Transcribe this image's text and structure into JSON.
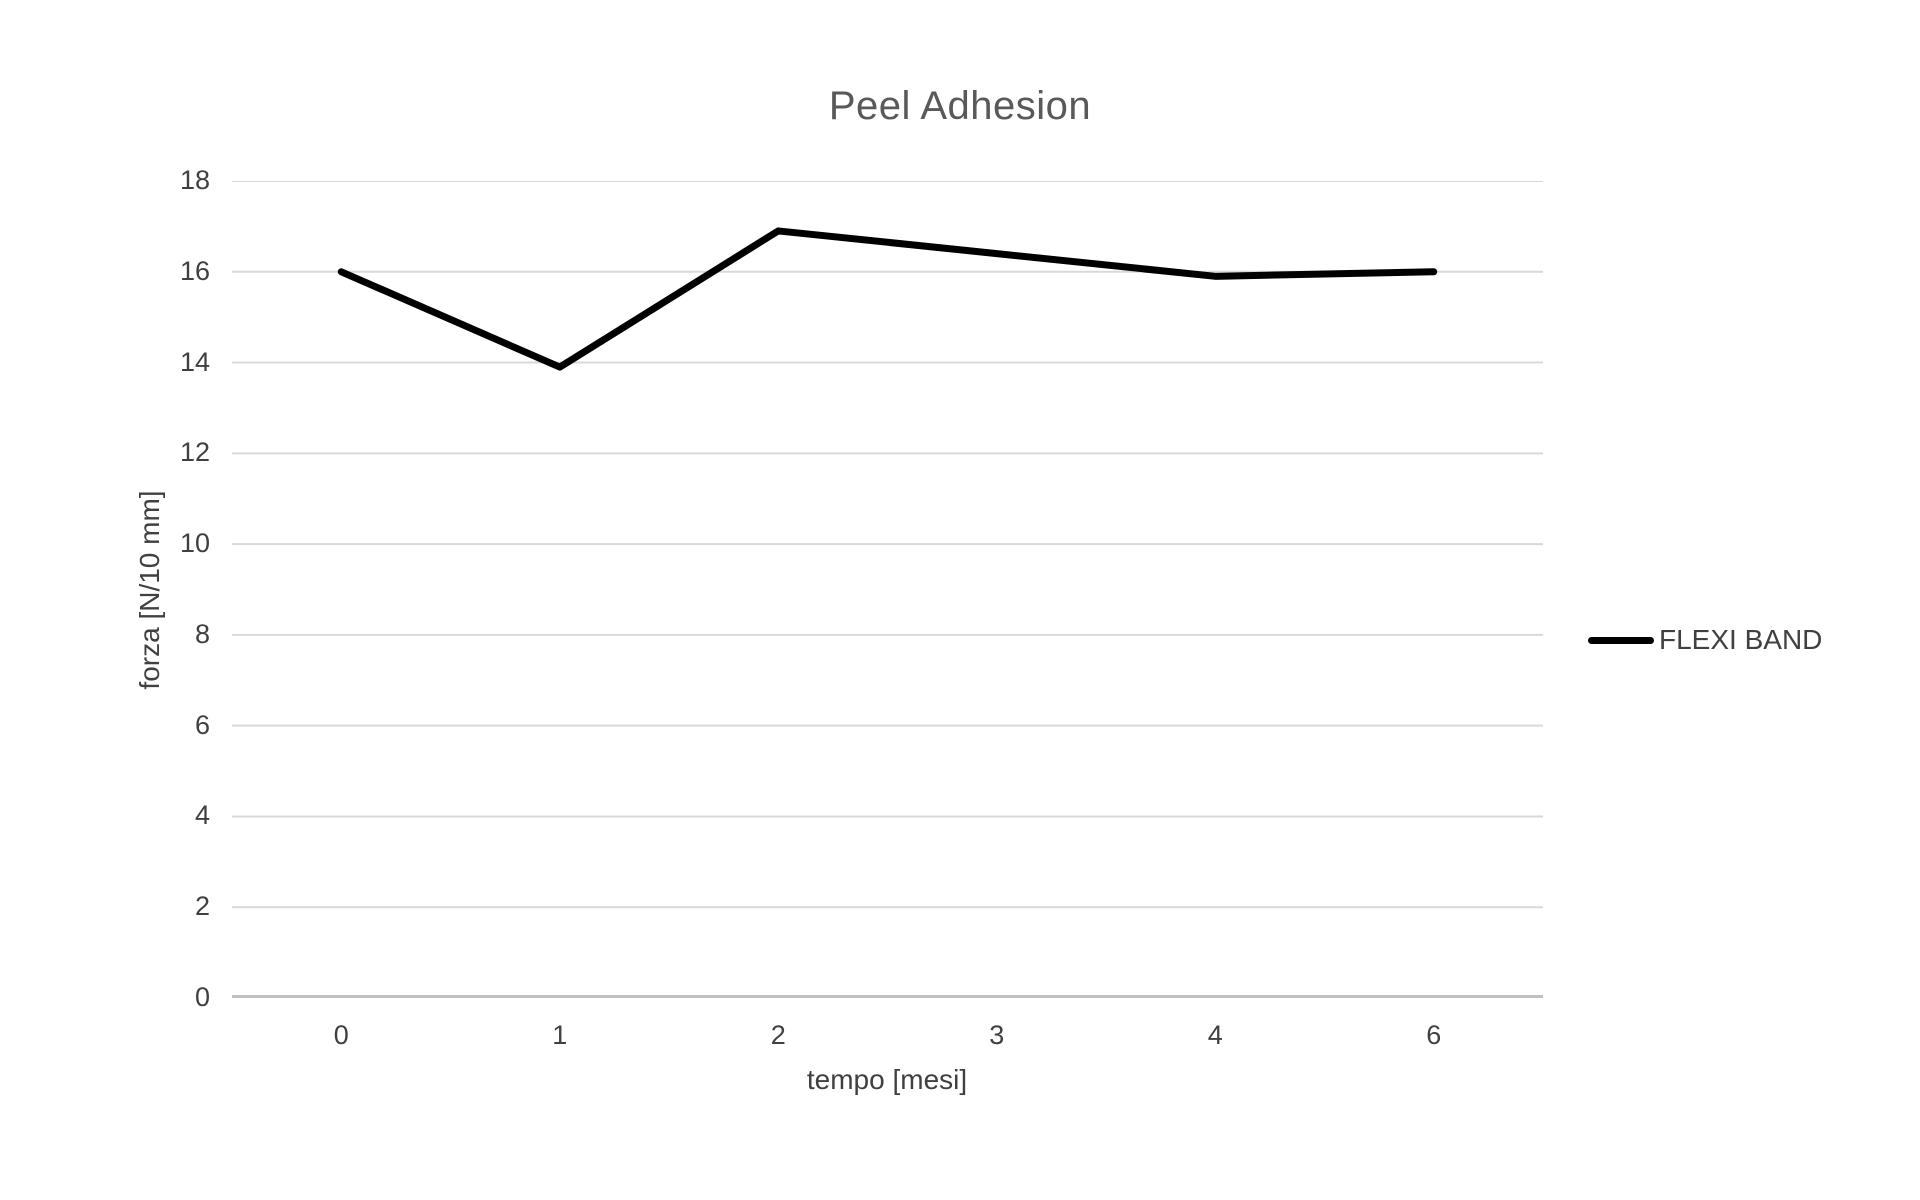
{
  "chart_data": {
    "type": "line",
    "title": "Peel Adhesion",
    "xlabel": "tempo [mesi]",
    "ylabel": "forza [N/10 mm]",
    "categories": [
      "0",
      "1",
      "2",
      "3",
      "4",
      "6"
    ],
    "yticks": [
      0,
      2,
      4,
      6,
      8,
      10,
      12,
      14,
      16,
      18
    ],
    "ylim": [
      0,
      18
    ],
    "grid": true,
    "legend_position": "right",
    "series": [
      {
        "name": "FLEXI BAND",
        "values": [
          16,
          13.9,
          16.9,
          16.4,
          15.9,
          16
        ]
      }
    ],
    "colors": {
      "series_line": "#000000",
      "gridline": "#d9d9d9",
      "axis_line": "#bfbfbf",
      "title_text": "#595959",
      "label_text": "#404040",
      "background": "#ffffff"
    }
  }
}
